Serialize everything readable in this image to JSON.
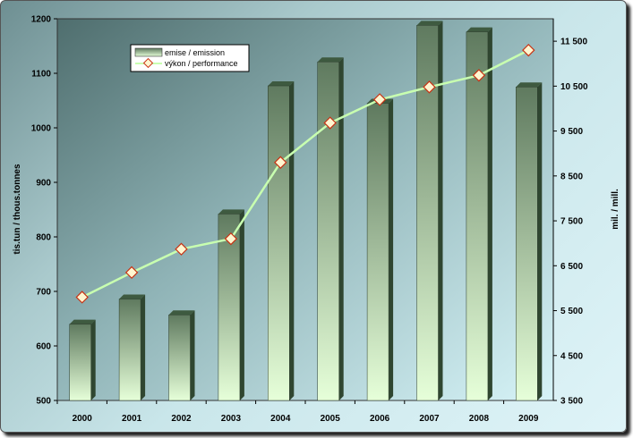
{
  "chart_data": {
    "type": "bar+line",
    "categories": [
      "2000",
      "2001",
      "2002",
      "2003",
      "2004",
      "2005",
      "2006",
      "2007",
      "2008",
      "2009"
    ],
    "series": [
      {
        "name": "emise / emission",
        "type": "bar",
        "axis": "left",
        "values": [
          640,
          686,
          657,
          842,
          1077,
          1121,
          1045,
          1188,
          1176,
          1075
        ]
      },
      {
        "name": "výkon / performance",
        "type": "line",
        "axis": "right",
        "values": [
          5800,
          6350,
          6870,
          7100,
          8800,
          9680,
          10200,
          10480,
          10740,
          11300
        ]
      }
    ],
    "left_axis": {
      "label": "tis.tun / thous.tonnes",
      "min": 500,
      "max": 1200,
      "ticks": [
        "500",
        "600",
        "700",
        "800",
        "900",
        "1000",
        "1100",
        "1200"
      ]
    },
    "right_axis": {
      "label": "mil. / mill.",
      "min": 3500,
      "max": 12000,
      "ticks": [
        "3 500",
        "4 500",
        "5 500",
        "6 500",
        "7 500",
        "8 500",
        "9 500",
        "10 500",
        "11 500"
      ]
    },
    "legend_position": "top-left",
    "colors": {
      "bar_top": "#5f7a5f",
      "bar_bottom": "#e6ffd9",
      "line": "#c8ffb0",
      "marker_fill": "#fff6d0",
      "marker_stroke": "#c83214"
    }
  }
}
